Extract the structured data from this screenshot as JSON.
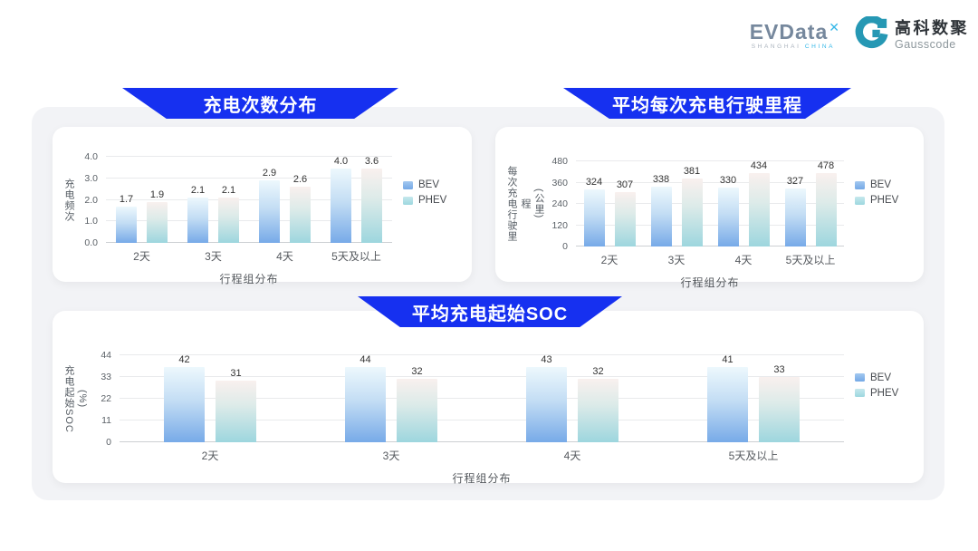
{
  "header": {
    "evdata": {
      "name": "EVData",
      "sup": "x",
      "sub1": "SHANGHAI",
      "sub2": "CHINA"
    },
    "gausscode": {
      "cn": "高科数聚",
      "en": "Gausscode"
    }
  },
  "colors": {
    "banner_blue": "#1630f0",
    "board_bg": "#f2f3f6",
    "bev_bottom": "#77aae8",
    "bev_top": "#edf8fd",
    "phev_bottom": "#9dd6de",
    "phev_top": "#f9f0ee",
    "gridline": "#e9eaec"
  },
  "chart_data": [
    {
      "type": "bar",
      "title": "充电次数分布",
      "categories": [
        "2天",
        "3天",
        "4天",
        "5天及以上"
      ],
      "series": [
        {
          "name": "BEV",
          "values": [
            1.7,
            2.1,
            2.9,
            4.0
          ],
          "labels": [
            "1.7",
            "2.1",
            "2.9",
            "4.0"
          ]
        },
        {
          "name": "PHEV",
          "values": [
            1.9,
            2.1,
            2.6,
            3.6
          ],
          "labels": [
            "1.9",
            "2.1",
            "2.6",
            "3.6"
          ]
        }
      ],
      "xlabel": "行程组分布",
      "ylabel_lines": [
        "充电频次"
      ],
      "yticks": [
        "0.0",
        "1.0",
        "2.0",
        "3.0",
        "4.0"
      ],
      "ylim": [
        0,
        4
      ],
      "grid": true,
      "legend_position": "right"
    },
    {
      "type": "bar",
      "title": "平均每次充电行驶里程",
      "categories": [
        "2天",
        "3天",
        "4天",
        "5天及以上"
      ],
      "series": [
        {
          "name": "BEV",
          "values": [
            324,
            338,
            330,
            327
          ],
          "labels": [
            "324",
            "338",
            "330",
            "327"
          ]
        },
        {
          "name": "PHEV",
          "values": [
            307,
            381,
            434,
            478
          ],
          "labels": [
            "307",
            "381",
            "434",
            "478"
          ]
        }
      ],
      "xlabel": "行程组分布",
      "ylabel_lines": [
        "每次充电行驶里程",
        "(公里)"
      ],
      "yticks": [
        "0",
        "120",
        "240",
        "360",
        "480"
      ],
      "ylim": [
        0,
        480
      ],
      "grid": true,
      "legend_position": "right"
    },
    {
      "type": "bar",
      "title": "平均充电起始SOC",
      "categories": [
        "2天",
        "3天",
        "4天",
        "5天及以上"
      ],
      "series": [
        {
          "name": "BEV",
          "values": [
            42,
            44,
            43,
            41
          ],
          "labels": [
            "42",
            "44",
            "43",
            "41"
          ]
        },
        {
          "name": "PHEV",
          "values": [
            31,
            32,
            32,
            33
          ],
          "labels": [
            "31",
            "32",
            "32",
            "33"
          ]
        }
      ],
      "xlabel": "行程组分布",
      "ylabel_lines": [
        "充电起始SOC",
        "(%)"
      ],
      "yticks": [
        "0",
        "11",
        "22",
        "33",
        "44"
      ],
      "ylim": [
        0,
        44
      ],
      "grid": true,
      "legend_position": "right"
    }
  ]
}
